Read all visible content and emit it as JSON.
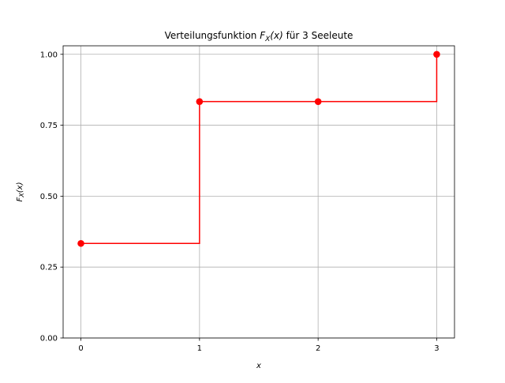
{
  "chart_data": {
    "type": "line",
    "drawstyle": "steps-post",
    "title_prefix": "Verteilungsfunktion ",
    "title_math": "F",
    "title_math_sub": "X",
    "title_math_arg": "(x)",
    "title_suffix": " für 3 Seeleute",
    "xlabel": "x",
    "ylabel_math": "F",
    "ylabel_math_sub": "X",
    "ylabel_math_arg": "(x)",
    "x": [
      0,
      1,
      2,
      3
    ],
    "y": [
      0.3333,
      0.8333,
      0.8333,
      1.0
    ],
    "xlim": [
      -0.15,
      3.15
    ],
    "ylim": [
      0.0,
      1.03
    ],
    "xticks": [
      0,
      1,
      2,
      3
    ],
    "xtick_labels": [
      "0",
      "1",
      "2",
      "3"
    ],
    "yticks": [
      0.0,
      0.25,
      0.5,
      0.75,
      1.0
    ],
    "ytick_labels": [
      "0.00",
      "0.25",
      "0.50",
      "0.75",
      "1.00"
    ],
    "grid": true,
    "line_color": "#ff0000",
    "marker_color": "#ff0000",
    "grid_color": "#b0b0b0"
  }
}
